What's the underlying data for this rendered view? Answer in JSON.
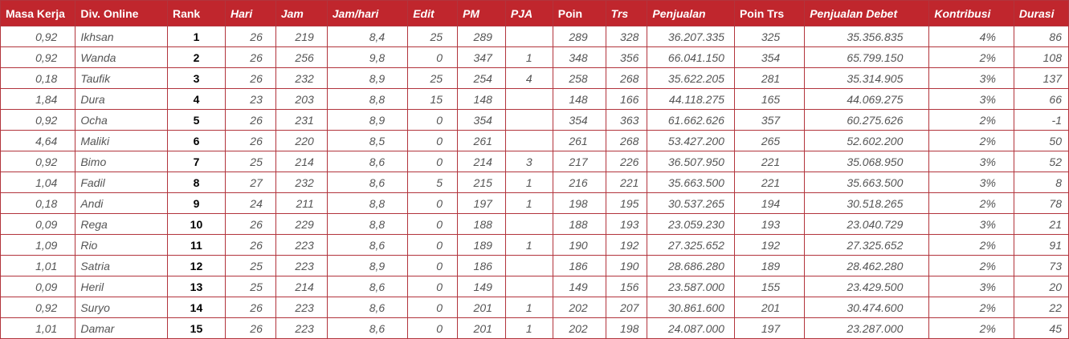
{
  "headers": {
    "masa_kerja": "Masa Kerja",
    "div_online": "Div. Online",
    "rank": "Rank",
    "hari": "Hari",
    "jam": "Jam",
    "jam_hari": "Jam/hari",
    "edit": "Edit",
    "pm": "PM",
    "pja": "PJA",
    "poin": "Poin",
    "trs": "Trs",
    "penjualan": "Penjualan",
    "poin_trs": "Poin Trs",
    "penjualan_debet": "Penjualan Debet",
    "kontribusi": "Kontribusi",
    "durasi": "Durasi"
  },
  "colors": {
    "header_bg": "#c0262d",
    "border": "#b2343c",
    "text": "#555555"
  },
  "rows": [
    {
      "masa_kerja": "0,92",
      "name": "Ikhsan",
      "rank": "1",
      "hari": "26",
      "jam": "219",
      "jam_hari": "8,4",
      "edit": "25",
      "pm": "289",
      "pja": "",
      "poin": "289",
      "trs": "328",
      "penjualan": "36.207.335",
      "poin_trs": "325",
      "penjualan_debet": "35.356.835",
      "kontribusi": "4%",
      "durasi": "86"
    },
    {
      "masa_kerja": "0,92",
      "name": "Wanda",
      "rank": "2",
      "hari": "26",
      "jam": "256",
      "jam_hari": "9,8",
      "edit": "0",
      "pm": "347",
      "pja": "1",
      "poin": "348",
      "trs": "356",
      "penjualan": "66.041.150",
      "poin_trs": "354",
      "penjualan_debet": "65.799.150",
      "kontribusi": "2%",
      "durasi": "108"
    },
    {
      "masa_kerja": "0,18",
      "name": "Taufik",
      "rank": "3",
      "hari": "26",
      "jam": "232",
      "jam_hari": "8,9",
      "edit": "25",
      "pm": "254",
      "pja": "4",
      "poin": "258",
      "trs": "268",
      "penjualan": "35.622.205",
      "poin_trs": "281",
      "penjualan_debet": "35.314.905",
      "kontribusi": "3%",
      "durasi": "137"
    },
    {
      "masa_kerja": "1,84",
      "name": "Dura",
      "rank": "4",
      "hari": "23",
      "jam": "203",
      "jam_hari": "8,8",
      "edit": "15",
      "pm": "148",
      "pja": "",
      "poin": "148",
      "trs": "166",
      "penjualan": "44.118.275",
      "poin_trs": "165",
      "penjualan_debet": "44.069.275",
      "kontribusi": "3%",
      "durasi": "66"
    },
    {
      "masa_kerja": "0,92",
      "name": "Ocha",
      "rank": "5",
      "hari": "26",
      "jam": "231",
      "jam_hari": "8,9",
      "edit": "0",
      "pm": "354",
      "pja": "",
      "poin": "354",
      "trs": "363",
      "penjualan": "61.662.626",
      "poin_trs": "357",
      "penjualan_debet": "60.275.626",
      "kontribusi": "2%",
      "durasi": "-1"
    },
    {
      "masa_kerja": "4,64",
      "name": "Maliki",
      "rank": "6",
      "hari": "26",
      "jam": "220",
      "jam_hari": "8,5",
      "edit": "0",
      "pm": "261",
      "pja": "",
      "poin": "261",
      "trs": "268",
      "penjualan": "53.427.200",
      "poin_trs": "265",
      "penjualan_debet": "52.602.200",
      "kontribusi": "2%",
      "durasi": "50"
    },
    {
      "masa_kerja": "0,92",
      "name": "Bimo",
      "rank": "7",
      "hari": "25",
      "jam": "214",
      "jam_hari": "8,6",
      "edit": "0",
      "pm": "214",
      "pja": "3",
      "poin": "217",
      "trs": "226",
      "penjualan": "36.507.950",
      "poin_trs": "221",
      "penjualan_debet": "35.068.950",
      "kontribusi": "3%",
      "durasi": "52"
    },
    {
      "masa_kerja": "1,04",
      "name": "Fadil",
      "rank": "8",
      "hari": "27",
      "jam": "232",
      "jam_hari": "8,6",
      "edit": "5",
      "pm": "215",
      "pja": "1",
      "poin": "216",
      "trs": "221",
      "penjualan": "35.663.500",
      "poin_trs": "221",
      "penjualan_debet": "35.663.500",
      "kontribusi": "3%",
      "durasi": "8"
    },
    {
      "masa_kerja": "0,18",
      "name": "Andi",
      "rank": "9",
      "hari": "24",
      "jam": "211",
      "jam_hari": "8,8",
      "edit": "0",
      "pm": "197",
      "pja": "1",
      "poin": "198",
      "trs": "195",
      "penjualan": "30.537.265",
      "poin_trs": "194",
      "penjualan_debet": "30.518.265",
      "kontribusi": "2%",
      "durasi": "78"
    },
    {
      "masa_kerja": "0,09",
      "name": "Rega",
      "rank": "10",
      "hari": "26",
      "jam": "229",
      "jam_hari": "8,8",
      "edit": "0",
      "pm": "188",
      "pja": "",
      "poin": "188",
      "trs": "193",
      "penjualan": "23.059.230",
      "poin_trs": "193",
      "penjualan_debet": "23.040.729",
      "kontribusi": "3%",
      "durasi": "21"
    },
    {
      "masa_kerja": "1,09",
      "name": "Rio",
      "rank": "11",
      "hari": "26",
      "jam": "223",
      "jam_hari": "8,6",
      "edit": "0",
      "pm": "189",
      "pja": "1",
      "poin": "190",
      "trs": "192",
      "penjualan": "27.325.652",
      "poin_trs": "192",
      "penjualan_debet": "27.325.652",
      "kontribusi": "2%",
      "durasi": "91"
    },
    {
      "masa_kerja": "1,01",
      "name": "Satria",
      "rank": "12",
      "hari": "25",
      "jam": "223",
      "jam_hari": "8,9",
      "edit": "0",
      "pm": "186",
      "pja": "",
      "poin": "186",
      "trs": "190",
      "penjualan": "28.686.280",
      "poin_trs": "189",
      "penjualan_debet": "28.462.280",
      "kontribusi": "2%",
      "durasi": "73"
    },
    {
      "masa_kerja": "0,09",
      "name": "Heril",
      "rank": "13",
      "hari": "25",
      "jam": "214",
      "jam_hari": "8,6",
      "edit": "0",
      "pm": "149",
      "pja": "",
      "poin": "149",
      "trs": "156",
      "penjualan": "23.587.000",
      "poin_trs": "155",
      "penjualan_debet": "23.429.500",
      "kontribusi": "3%",
      "durasi": "20"
    },
    {
      "masa_kerja": "0,92",
      "name": "Suryo",
      "rank": "14",
      "hari": "26",
      "jam": "223",
      "jam_hari": "8,6",
      "edit": "0",
      "pm": "201",
      "pja": "1",
      "poin": "202",
      "trs": "207",
      "penjualan": "30.861.600",
      "poin_trs": "201",
      "penjualan_debet": "30.474.600",
      "kontribusi": "2%",
      "durasi": "22"
    },
    {
      "masa_kerja": "1,01",
      "name": "Damar",
      "rank": "15",
      "hari": "26",
      "jam": "223",
      "jam_hari": "8,6",
      "edit": "0",
      "pm": "201",
      "pja": "1",
      "poin": "202",
      "trs": "198",
      "penjualan": "24.087.000",
      "poin_trs": "197",
      "penjualan_debet": "23.287.000",
      "kontribusi": "2%",
      "durasi": "45"
    }
  ]
}
